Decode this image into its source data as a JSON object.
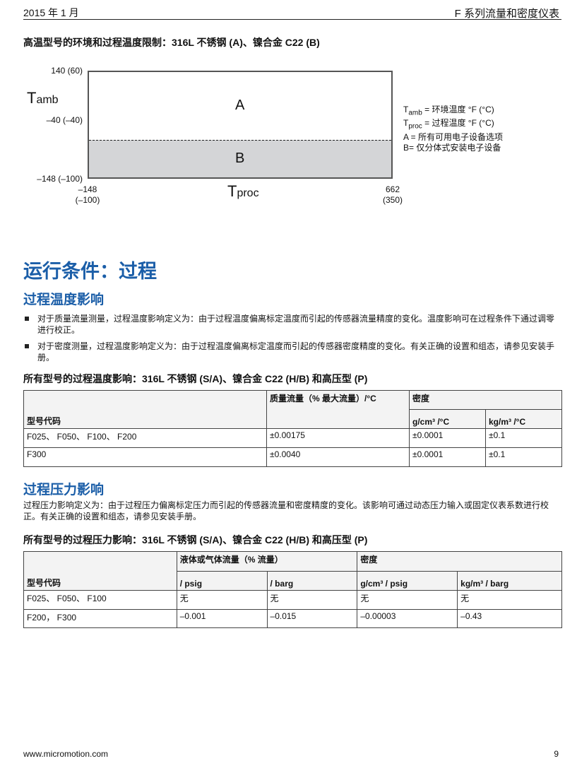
{
  "header": {
    "date": "2015 年 1 月",
    "doc_title": "F 系列流量和密度仪表"
  },
  "chart_title": "高温型号的环境和过程温度限制：316L 不锈钢 (A)、镍合金  C22 (B)",
  "chart_data": {
    "type": "region",
    "y_label": "T",
    "y_label_sub": "amb",
    "x_label": "T",
    "x_label_sub": "proc",
    "y_ticks": [
      "140 (60)",
      "–40 (–40)",
      "–148 (–100)"
    ],
    "x_ticks": [
      {
        "top": "–148",
        "bottom": "(–100)"
      },
      {
        "top": "662",
        "bottom": "(350)"
      }
    ],
    "regions": [
      {
        "label": "A",
        "color": "#ffffff"
      },
      {
        "label": "B",
        "color": "#d4d5d7"
      }
    ],
    "legend": [
      {
        "sym": "T",
        "sub": "amb",
        "text": " = 环境温度 °F (°C)"
      },
      {
        "sym": "T",
        "sub": "proc",
        "text": " = 过程温度 °F (°C)"
      },
      {
        "sym": "A",
        "sub": "",
        "text": " = 所有可用电子设备选项"
      },
      {
        "sym": "B",
        "sub": "",
        "text": "= 仅分体式安装电子设备"
      }
    ]
  },
  "section_title": "运行条件：过程",
  "temp": {
    "heading": "过程温度影响",
    "bullets": [
      "对于质量流量测量，过程温度影响定义为：由于过程温度偏离标定温度而引起的传感器流量精度的变化。温度影响可在过程条件下通过调零进行校正。",
      "对于密度测量，过程温度影响定义为：由于过程温度偏离标定温度而引起的传感器密度精度的变化。有关正确的设置和组态，请参见安装手册。"
    ],
    "table_title": "所有型号的过程温度影响：316L 不锈钢 (S/A)、镍合金 C22 (H/B) 和高压型 (P)",
    "cols": {
      "model": "型号代码",
      "mass": "质量流量（% 最大流量）/°C",
      "density": "密度",
      "d1": "g/cm³ /°C",
      "d2": "kg/m³ /°C"
    },
    "rows": [
      [
        "F025、 F050、 F100、 F200",
        "±0.00175",
        "±0.0001",
        "±0.1"
      ],
      [
        "F300",
        "±0.0040",
        "±0.0001",
        "±0.1"
      ]
    ]
  },
  "press": {
    "heading": "过程压力影响",
    "text": "过程压力影响定义为：由于过程压力偏离标定压力而引起的传感器流量和密度精度的变化。该影响可通过动态压力输入或固定仪表系数进行校正。有关正确的设置和组态，请参见安装手册。",
    "table_title": "所有型号的过程压力影响：316L 不锈钢 (S/A)、镍合金 C22 (H/B) 和高压型 (P)",
    "cols": {
      "model": "型号代码",
      "flow": "液体或气体流量（% 流量）",
      "density": "密度",
      "f1": "/ psig",
      "f2": "/ barg",
      "d1": "g/cm³ / psig",
      "d2": "kg/m³ / barg"
    },
    "rows": [
      [
        "F025、 F050、 F100",
        "无",
        "无",
        "无",
        "无"
      ],
      [
        "F200， F300",
        "–0.001",
        "–0.015",
        "–0.00003",
        "–0.43"
      ]
    ]
  },
  "footer": {
    "url": "www.micromotion.com",
    "page": "9"
  }
}
